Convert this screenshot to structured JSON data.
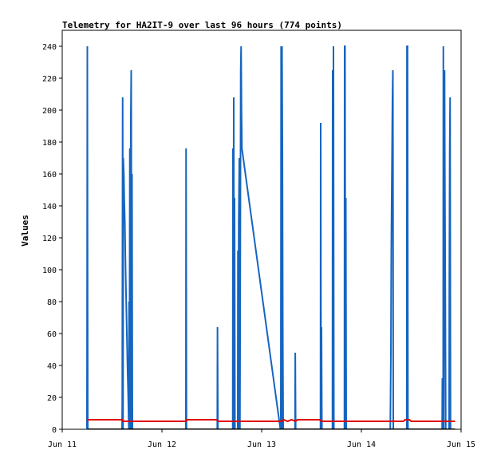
{
  "chart_data": {
    "type": "line",
    "title": "Telemetry for HA2IT-9 over last 96 hours (774 points)",
    "xlabel": "",
    "ylabel": "Values",
    "xlim": [
      11.0,
      15.0
    ],
    "ylim": [
      0,
      250
    ],
    "x_ticks": [
      {
        "value": 11,
        "label": "Jun 11"
      },
      {
        "value": 12,
        "label": "Jun 12"
      },
      {
        "value": 13,
        "label": "Jun 13"
      },
      {
        "value": 14,
        "label": "Jun 14"
      },
      {
        "value": 15,
        "label": "Jun 15"
      }
    ],
    "y_ticks": [
      0,
      20,
      40,
      60,
      80,
      100,
      120,
      140,
      160,
      180,
      200,
      220,
      240
    ],
    "grid": false,
    "legend": "none",
    "series": [
      {
        "color": "#1565c0",
        "points": [
          [
            11.248,
            0
          ],
          [
            11.252,
            240
          ],
          [
            11.256,
            0
          ],
          [
            11.6,
            0
          ],
          [
            11.602,
            16
          ],
          [
            11.606,
            208
          ],
          [
            11.61,
            0
          ],
          [
            11.612,
            170
          ],
          [
            11.618,
            160
          ],
          [
            11.622,
            145
          ],
          [
            11.628,
            130
          ],
          [
            11.634,
            105
          ],
          [
            11.64,
            85
          ],
          [
            11.648,
            60
          ],
          [
            11.656,
            35
          ],
          [
            11.662,
            20
          ],
          [
            11.668,
            0
          ],
          [
            11.67,
            80
          ],
          [
            11.674,
            0
          ],
          [
            11.678,
            176
          ],
          [
            11.682,
            0
          ],
          [
            11.688,
            196
          ],
          [
            11.692,
            225
          ],
          [
            11.696,
            0
          ],
          [
            11.7,
            160
          ],
          [
            11.704,
            0
          ],
          [
            12.24,
            0
          ],
          [
            12.242,
            176
          ],
          [
            12.246,
            0
          ],
          [
            12.555,
            0
          ],
          [
            12.557,
            64
          ],
          [
            12.561,
            0
          ],
          [
            12.71,
            0
          ],
          [
            12.712,
            176
          ],
          [
            12.716,
            0
          ],
          [
            12.72,
            208
          ],
          [
            12.724,
            0
          ],
          [
            12.728,
            145
          ],
          [
            12.732,
            0
          ],
          [
            12.76,
            0
          ],
          [
            12.762,
            112
          ],
          [
            12.766,
            0
          ],
          [
            12.77,
            130
          ],
          [
            12.776,
            170
          ],
          [
            12.782,
            0
          ],
          [
            12.79,
            225
          ],
          [
            12.794,
            240
          ],
          [
            12.798,
            200
          ],
          [
            12.802,
            176
          ],
          [
            13.188,
            0
          ],
          [
            13.192,
            0
          ],
          [
            13.195,
            240
          ],
          [
            13.2,
            0
          ],
          [
            13.204,
            240
          ],
          [
            13.208,
            180
          ],
          [
            13.212,
            60
          ],
          [
            13.216,
            0
          ],
          [
            13.335,
            0
          ],
          [
            13.337,
            48
          ],
          [
            13.341,
            0
          ],
          [
            13.59,
            0
          ],
          [
            13.592,
            192
          ],
          [
            13.596,
            0
          ],
          [
            13.6,
            64
          ],
          [
            13.604,
            0
          ],
          [
            13.71,
            0
          ],
          [
            13.712,
            225
          ],
          [
            13.716,
            0
          ],
          [
            13.72,
            240
          ],
          [
            13.724,
            0
          ],
          [
            13.83,
            0
          ],
          [
            13.832,
            240
          ],
          [
            13.836,
            240
          ],
          [
            13.84,
            0
          ],
          [
            13.844,
            145
          ],
          [
            13.848,
            0
          ],
          [
            14.29,
            0
          ],
          [
            14.292,
            16
          ],
          [
            14.296,
            48
          ],
          [
            14.3,
            112
          ],
          [
            14.304,
            145
          ],
          [
            14.308,
            176
          ],
          [
            14.312,
            208
          ],
          [
            14.316,
            225
          ],
          [
            14.32,
            0
          ],
          [
            14.455,
            0
          ],
          [
            14.457,
            240
          ],
          [
            14.463,
            240
          ],
          [
            14.467,
            0
          ],
          [
            14.81,
            0
          ],
          [
            14.812,
            32
          ],
          [
            14.816,
            0
          ],
          [
            14.82,
            0
          ],
          [
            14.822,
            240
          ],
          [
            14.826,
            0
          ],
          [
            14.834,
            225
          ],
          [
            14.838,
            145
          ],
          [
            14.842,
            80
          ],
          [
            14.846,
            0
          ],
          [
            14.88,
            0
          ],
          [
            14.882,
            88
          ],
          [
            14.886,
            176
          ],
          [
            14.89,
            208
          ],
          [
            14.894,
            0
          ]
        ]
      },
      {
        "color": "#e00000",
        "points": [
          [
            11.25,
            5
          ],
          [
            11.26,
            6
          ],
          [
            11.6,
            6
          ],
          [
            11.61,
            5
          ],
          [
            12.24,
            5
          ],
          [
            12.25,
            6
          ],
          [
            12.55,
            6
          ],
          [
            12.56,
            5
          ],
          [
            13.2,
            5
          ],
          [
            13.22,
            6
          ],
          [
            13.26,
            5
          ],
          [
            13.3,
            6
          ],
          [
            13.34,
            5
          ],
          [
            13.36,
            6
          ],
          [
            13.58,
            6
          ],
          [
            13.6,
            5
          ],
          [
            14.42,
            5
          ],
          [
            14.44,
            6
          ],
          [
            14.48,
            6
          ],
          [
            14.5,
            5
          ],
          [
            14.94,
            5
          ]
        ]
      },
      {
        "color": "#000000",
        "points": [
          [
            11.25,
            0
          ],
          [
            14.94,
            0
          ]
        ]
      }
    ]
  }
}
